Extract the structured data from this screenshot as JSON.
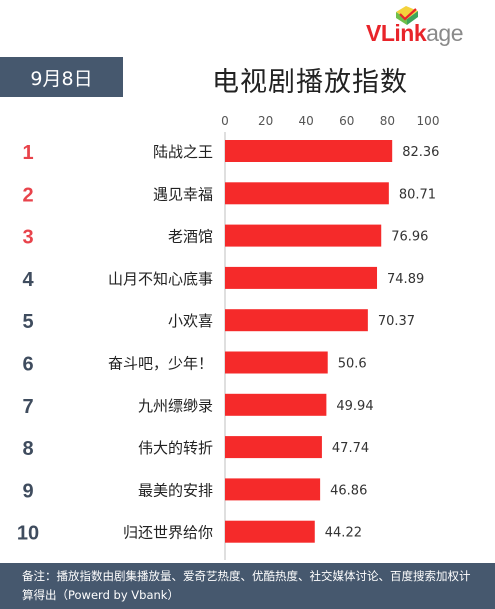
{
  "brand": {
    "part1": "VLink",
    "part2": "age"
  },
  "date_label": "9月8日",
  "title": "电视剧播放指数",
  "footnote": "备注：播放指数由剧集播放量、爱奇艺热度、优酷热度、社交媒体讨论、百度搜索加权计算得出（Powerd by Vbank）",
  "colors": {
    "bar": "#f52a2a",
    "rank_top": "#e8434b",
    "rank_other": "#3f4c5e",
    "header_bg": "#46586e"
  },
  "chart_data": {
    "type": "bar",
    "orientation": "horizontal",
    "xlim": [
      0,
      100
    ],
    "ticks": [
      0,
      20,
      40,
      60,
      80,
      100
    ],
    "grid": false,
    "ranks": [
      "1",
      "2",
      "3",
      "4",
      "5",
      "6",
      "7",
      "8",
      "9",
      "10"
    ],
    "categories": [
      "陆战之王",
      "遇见幸福",
      "老酒馆",
      "山月不知心底事",
      "小欢喜",
      "奋斗吧，少年！",
      "九州缥缈录",
      "伟大的转折",
      "最美的安排",
      "归还世界给你"
    ],
    "values": [
      82.36,
      80.71,
      76.96,
      74.89,
      70.37,
      50.6,
      49.94,
      47.74,
      46.86,
      44.22
    ],
    "value_labels": [
      "82.36",
      "80.71",
      "76.96",
      "74.89",
      "70.37",
      "50.6",
      "49.94",
      "47.74",
      "46.86",
      "44.22"
    ]
  }
}
